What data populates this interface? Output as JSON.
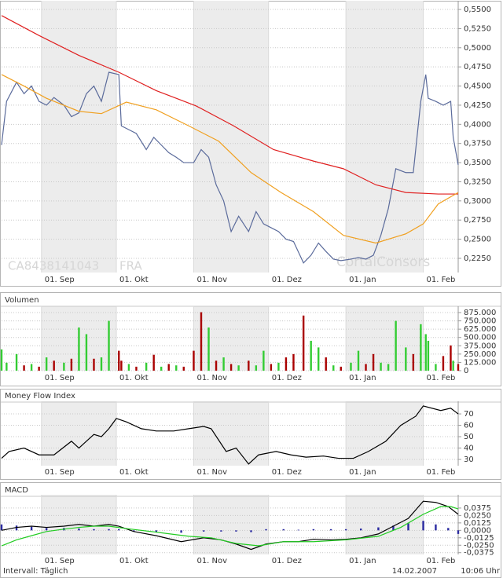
{
  "chart_data": [
    {
      "type": "line",
      "watermark": "CA8438141043",
      "exchange": "FRA",
      "brand": "CortalConsors",
      "xlim": [
        1,
        184
      ],
      "xticks": [
        {
          "value": 17,
          "label": "01. Sep"
        },
        {
          "value": 47,
          "label": "01. Okt"
        },
        {
          "value": 78,
          "label": "01. Nov"
        },
        {
          "value": 108,
          "label": "01. Dez"
        },
        {
          "value": 139,
          "label": "01. Jan"
        },
        {
          "value": 170,
          "label": "01. Feb"
        }
      ],
      "ylim": [
        0.2065,
        0.5603
      ],
      "yticks": [
        {
          "value": 0.55,
          "label": "0,5500"
        },
        {
          "value": 0.525,
          "label": "0,5250"
        },
        {
          "value": 0.5,
          "label": "0,5000"
        },
        {
          "value": 0.475,
          "label": "0,4750"
        },
        {
          "value": 0.45,
          "label": "0,4500"
        },
        {
          "value": 0.425,
          "label": "0,4250"
        },
        {
          "value": 0.4,
          "label": "0,4000"
        },
        {
          "value": 0.375,
          "label": "0,3750"
        },
        {
          "value": 0.35,
          "label": "0,3500"
        },
        {
          "value": 0.325,
          "label": "0,3250"
        },
        {
          "value": 0.3,
          "label": "0,3000"
        },
        {
          "value": 0.275,
          "label": "0,2750"
        },
        {
          "value": 0.25,
          "label": "0,2500"
        },
        {
          "value": 0.225,
          "label": "0,2250"
        }
      ],
      "grid": true,
      "series": [
        {
          "color": "#5b6b9b",
          "x": [
            1,
            3,
            7,
            10,
            13,
            16,
            19,
            22,
            26,
            29,
            32,
            35,
            38,
            41,
            44,
            48,
            49,
            52,
            55,
            59,
            62,
            65,
            68,
            71,
            74,
            78,
            81,
            84,
            87,
            90,
            93,
            96,
            100,
            103,
            106,
            109,
            112,
            115,
            118,
            122,
            125,
            128,
            131,
            134,
            137,
            141,
            144,
            147,
            150,
            153,
            156,
            159,
            163,
            166,
            169,
            171,
            172,
            175,
            178,
            181,
            182,
            184
          ],
          "values": [
            0.373,
            0.43,
            0.455,
            0.44,
            0.45,
            0.43,
            0.425,
            0.435,
            0.425,
            0.41,
            0.415,
            0.44,
            0.45,
            0.43,
            0.468,
            0.465,
            0.398,
            0.393,
            0.388,
            0.367,
            0.383,
            0.373,
            0.363,
            0.357,
            0.35,
            0.35,
            0.367,
            0.357,
            0.321,
            0.3,
            0.26,
            0.28,
            0.26,
            0.286,
            0.27,
            0.265,
            0.26,
            0.25,
            0.247,
            0.219,
            0.229,
            0.245,
            0.234,
            0.224,
            0.222,
            0.224,
            0.226,
            0.224,
            0.229,
            0.255,
            0.29,
            0.342,
            0.337,
            0.337,
            0.43,
            0.465,
            0.434,
            0.43,
            0.425,
            0.43,
            0.383,
            0.347
          ]
        },
        {
          "color": "#e02020",
          "x": [
            1,
            16,
            32,
            48,
            63,
            79,
            94,
            110,
            126,
            138,
            151,
            163,
            176,
            184
          ],
          "values": [
            0.542,
            0.516,
            0.49,
            0.468,
            0.444,
            0.424,
            0.398,
            0.367,
            0.352,
            0.342,
            0.321,
            0.311,
            0.309,
            0.309
          ]
        },
        {
          "color": "#f0a020",
          "x": [
            1,
            10,
            19,
            32,
            41,
            51,
            63,
            76,
            88,
            101,
            113,
            126,
            138,
            151,
            163,
            170,
            176,
            184
          ],
          "values": [
            0.465,
            0.45,
            0.434,
            0.417,
            0.414,
            0.429,
            0.419,
            0.398,
            0.378,
            0.337,
            0.311,
            0.286,
            0.255,
            0.245,
            0.257,
            0.27,
            0.296,
            0.311
          ]
        }
      ]
    },
    {
      "type": "bar",
      "title": "Volumen",
      "xlim": [
        1,
        184
      ],
      "xticks": [
        {
          "value": 17,
          "label": "01. Sep"
        },
        {
          "value": 47,
          "label": "01. Okt"
        },
        {
          "value": 78,
          "label": "01. Nov"
        },
        {
          "value": 108,
          "label": "01. Dez"
        },
        {
          "value": 139,
          "label": "01. Jan"
        },
        {
          "value": 170,
          "label": "01. Feb"
        }
      ],
      "ylim": [
        0,
        946000
      ],
      "yticks": [
        0,
        {
          "value": 125000,
          "label": "125.000"
        },
        {
          "value": 250000,
          "label": "250.000"
        },
        {
          "value": 375000,
          "label": "375.000"
        },
        {
          "value": 500000,
          "label": "500.000"
        },
        {
          "value": 625000,
          "label": "625.000"
        },
        {
          "value": 750000,
          "label": "750.000"
        },
        {
          "value": 875000,
          "label": "875.000"
        }
      ],
      "grid": true,
      "x": [
        1,
        3,
        7,
        10,
        13,
        16,
        19,
        22,
        26,
        29,
        32,
        35,
        38,
        41,
        44,
        48,
        49,
        52,
        55,
        59,
        62,
        65,
        68,
        71,
        74,
        78,
        81,
        84,
        87,
        90,
        93,
        96,
        100,
        103,
        106,
        109,
        112,
        115,
        118,
        122,
        125,
        128,
        131,
        134,
        137,
        141,
        144,
        147,
        150,
        153,
        156,
        159,
        163,
        166,
        169,
        171,
        172,
        175,
        178,
        181,
        182,
        184
      ],
      "values": [
        320000,
        120000,
        250000,
        80000,
        100000,
        60000,
        200000,
        150000,
        120000,
        180000,
        650000,
        550000,
        180000,
        200000,
        750000,
        300000,
        150000,
        100000,
        60000,
        120000,
        240000,
        60000,
        100000,
        80000,
        60000,
        300000,
        880000,
        650000,
        150000,
        200000,
        100000,
        80000,
        150000,
        80000,
        300000,
        100000,
        120000,
        200000,
        250000,
        830000,
        450000,
        350000,
        200000,
        80000,
        60000,
        120000,
        300000,
        100000,
        250000,
        120000,
        100000,
        750000,
        350000,
        250000,
        700000,
        550000,
        450000,
        100000,
        220000,
        380000,
        150000,
        100000
      ],
      "colors": [
        "#33cc33",
        "#33cc33",
        "#33cc33",
        "#aa0000",
        "#33cc33",
        "#aa0000",
        "#33cc33",
        "#aa0000",
        "#33cc33",
        "#aa0000",
        "#33cc33",
        "#33cc33",
        "#aa0000",
        "#33cc33",
        "#33cc33",
        "#aa0000",
        "#aa0000",
        "#33cc33",
        "#aa0000",
        "#33cc33",
        "#aa0000",
        "#33cc33",
        "#aa0000",
        "#33cc33",
        "#aa0000",
        "#aa0000",
        "#aa0000",
        "#33cc33",
        "#aa0000",
        "#33cc33",
        "#aa0000",
        "#33cc33",
        "#aa0000",
        "#33cc33",
        "#33cc33",
        "#aa0000",
        "#33cc33",
        "#aa0000",
        "#aa0000",
        "#aa0000",
        "#33cc33",
        "#33cc33",
        "#aa0000",
        "#33cc33",
        "#aa0000",
        "#33cc33",
        "#33cc33",
        "#aa0000",
        "#aa0000",
        "#33cc33",
        "#33cc33",
        "#33cc33",
        "#33cc33",
        "#aa0000",
        "#33cc33",
        "#33cc33",
        "#33cc33",
        "#33cc33",
        "#aa0000",
        "#aa0000",
        "#33cc33",
        "#aa0000"
      ]
    },
    {
      "type": "line",
      "title": "Money Flow Index",
      "xlim": [
        1,
        184
      ],
      "xticks": [
        {
          "value": 17,
          "label": "01. Sep"
        },
        {
          "value": 47,
          "label": "01. Okt"
        },
        {
          "value": 78,
          "label": "01. Nov"
        },
        {
          "value": 108,
          "label": "01. Dez"
        },
        {
          "value": 139,
          "label": "01. Jan"
        },
        {
          "value": 170,
          "label": "01. Feb"
        }
      ],
      "ylim": [
        24.5,
        79.7
      ],
      "yticks": [
        30,
        40,
        50,
        60,
        70
      ],
      "grid": true,
      "series": [
        {
          "color": "#000000",
          "x": [
            1,
            4,
            10,
            16,
            22,
            29,
            32,
            35,
            38,
            41,
            44,
            47,
            51,
            57,
            63,
            70,
            76,
            82,
            85,
            91,
            95,
            100,
            104,
            111,
            117,
            123,
            130,
            136,
            142,
            148,
            155,
            161,
            167,
            170,
            177,
            181,
            184
          ],
          "values": [
            31,
            37,
            40,
            34,
            34,
            46,
            40,
            46,
            52,
            50,
            57,
            66,
            63,
            57,
            55,
            55,
            57,
            59,
            57,
            37,
            40,
            26,
            34,
            37,
            34,
            32,
            33,
            31,
            31,
            37,
            46,
            60,
            68,
            77,
            73,
            75,
            70
          ]
        }
      ]
    },
    {
      "type": "line",
      "title": "MACD",
      "xlim": [
        1,
        184
      ],
      "xticks": [
        {
          "value": 17,
          "label": "01. Sep"
        },
        {
          "value": 47,
          "label": "01. Okt"
        },
        {
          "value": 78,
          "label": "01. Nov"
        },
        {
          "value": 108,
          "label": "01. Dez"
        },
        {
          "value": 139,
          "label": "01. Jan"
        },
        {
          "value": 170,
          "label": "01. Feb"
        }
      ],
      "ylim": [
        -0.0405,
        0.0572
      ],
      "yticks": [
        {
          "value": 0.0375,
          "label": "0,0375"
        },
        {
          "value": 0.025,
          "label": "0,0250"
        },
        {
          "value": 0.0125,
          "label": "0,0125"
        },
        {
          "value": 0,
          "label": "0,0000"
        },
        {
          "value": -0.0125,
          "label": "-0,0125"
        },
        {
          "value": -0.025,
          "label": "-0,0250"
        },
        {
          "value": -0.0375,
          "label": "-0,0375"
        }
      ],
      "grid": true,
      "histogram": {
        "color": "#2a2aa0",
        "x": [
          1,
          7,
          13,
          19,
          26,
          32,
          38,
          44,
          48,
          54,
          63,
          73,
          82,
          89,
          95,
          101,
          107,
          114,
          120,
          126,
          133,
          139,
          145,
          152,
          158,
          164,
          170,
          175,
          180,
          184
        ],
        "values": [
          0.01,
          0.008,
          0.006,
          0.004,
          0.004,
          0.003,
          0.002,
          0.002,
          0.002,
          -0.002,
          -0.003,
          -0.004,
          -0.002,
          -0.002,
          -0.002,
          -0.003,
          0.002,
          0.002,
          0.001,
          0.002,
          0.002,
          0.002,
          0.003,
          0.005,
          0.008,
          0.012,
          0.016,
          0.01,
          0.004,
          -0.006
        ]
      },
      "series": [
        {
          "color": "#000000",
          "x": [
            1,
            7,
            13,
            19,
            26,
            32,
            38,
            44,
            48,
            54,
            63,
            73,
            82,
            89,
            95,
            101,
            107,
            114,
            120,
            126,
            133,
            139,
            145,
            152,
            158,
            164,
            170,
            175,
            180,
            184
          ],
          "values": [
            0,
            0.005,
            0.007,
            0.005,
            0.007,
            0.01,
            0.007,
            0.01,
            0.007,
            -0.002,
            -0.009,
            -0.019,
            -0.0125,
            -0.016,
            -0.023,
            -0.032,
            -0.023,
            -0.019,
            -0.019,
            -0.015,
            -0.016,
            -0.015,
            -0.0125,
            -0.006,
            0.007,
            0.02,
            0.049,
            0.047,
            0.04,
            0.027
          ]
        },
        {
          "color": "#22cc22",
          "x": [
            1,
            7,
            13,
            19,
            26,
            32,
            38,
            44,
            51,
            63,
            76,
            85,
            95,
            104,
            114,
            126,
            139,
            152,
            161,
            170,
            177,
            181,
            184
          ],
          "values": [
            -0.026,
            -0.016,
            -0.009,
            -0.002,
            0.002,
            0.005,
            0.007,
            0.007,
            0.003,
            -0.003,
            -0.01,
            -0.0125,
            -0.022,
            -0.026,
            -0.019,
            -0.019,
            -0.016,
            -0.01,
            0.005,
            0.027,
            0.04,
            0.04,
            0.036
          ]
        }
      ]
    }
  ],
  "footer": {
    "interval": "Intervall: Täglich",
    "date": "14.02.2007",
    "time": "10:06 Uhr"
  }
}
